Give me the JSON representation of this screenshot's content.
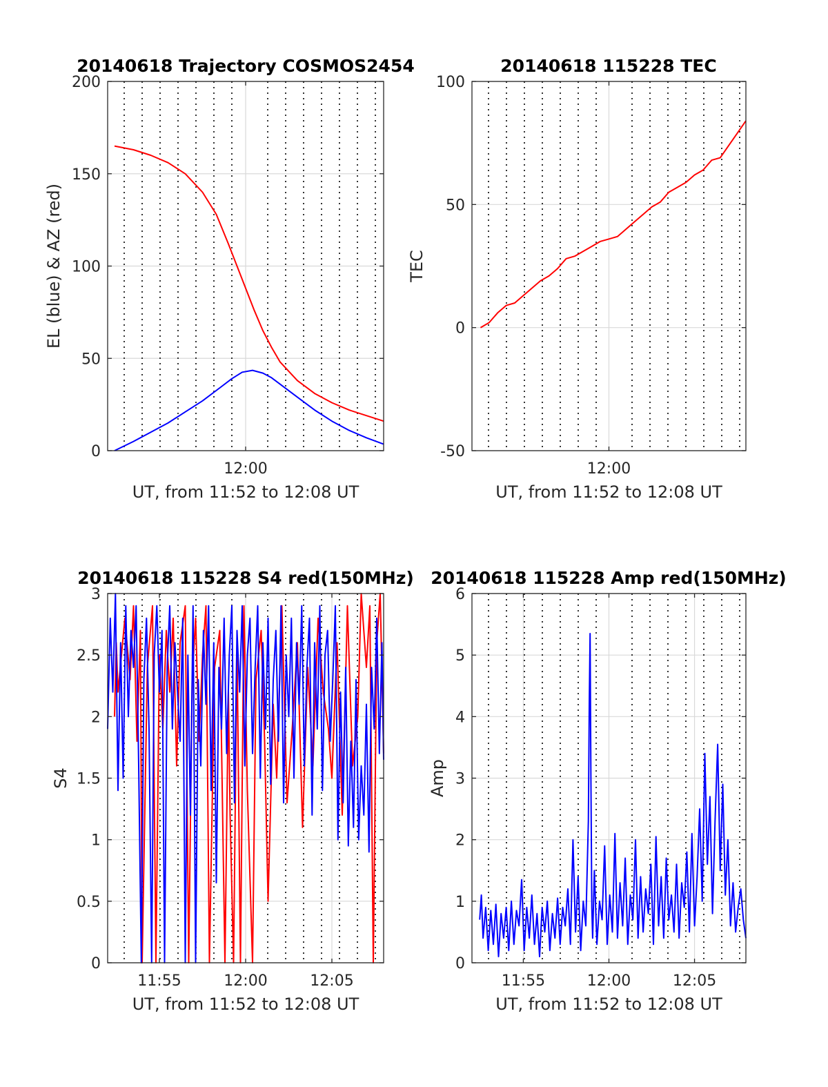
{
  "colors": {
    "el": "#0000ff",
    "az": "#ff0000",
    "grid": "#d9d9d9",
    "axis": "#262626"
  },
  "chart_data": [
    {
      "type": "line",
      "title": "20140618 Trajectory COSMOS2454",
      "xlabel": "UT, from 11:52 to 12:08 UT",
      "ylabel": "EL (blue) & AZ (red)",
      "xlim": [
        0,
        16
      ],
      "ylim": [
        0,
        200
      ],
      "xtick_values": [
        8
      ],
      "xtick_labels": [
        "12:00"
      ],
      "ytick_values": [
        0,
        50,
        100,
        150,
        200
      ],
      "ytick_labels": [
        "0",
        "50",
        "100",
        "150",
        "200"
      ],
      "grid": "on",
      "x_unit": "minutes after 11:52 UT",
      "series": [
        {
          "name": "AZ",
          "color": "#ff0000",
          "x": [
            0.4,
            1.5,
            2.5,
            3.5,
            4.5,
            5.5,
            6.3,
            7,
            7.5,
            8,
            8.5,
            9,
            9.5,
            10,
            11,
            12,
            13,
            14,
            15,
            16
          ],
          "y": [
            165,
            163,
            160,
            156,
            150,
            140,
            128,
            112,
            100,
            88,
            76,
            65,
            56,
            48,
            38,
            31,
            26,
            22,
            19,
            16
          ]
        },
        {
          "name": "EL",
          "color": "#0000ff",
          "x": [
            0.4,
            1.5,
            2.5,
            3.5,
            4.5,
            5.5,
            6.5,
            7.2,
            7.8,
            8.4,
            9,
            9.5,
            10,
            11,
            12,
            13,
            14,
            15,
            16
          ],
          "y": [
            0,
            5,
            10,
            15,
            21,
            27,
            34,
            39,
            42.5,
            43.5,
            42,
            39.5,
            36,
            29,
            22,
            16,
            11,
            7,
            3.5
          ]
        }
      ]
    },
    {
      "type": "line",
      "title": "20140618 115228 TEC",
      "xlabel": "UT, from 11:52 to 12:08 UT",
      "ylabel": "TEC",
      "xlim": [
        0,
        16
      ],
      "ylim": [
        -50,
        100
      ],
      "xtick_values": [
        8
      ],
      "xtick_labels": [
        "12:00"
      ],
      "ytick_values": [
        -50,
        0,
        50,
        100
      ],
      "ytick_labels": [
        "-50",
        "0",
        "50",
        "100"
      ],
      "grid": "on",
      "x_unit": "minutes after 11:52 UT",
      "series": [
        {
          "name": "TEC",
          "color": "#ff0000",
          "x": [
            0.5,
            1,
            1.5,
            2,
            2.5,
            3,
            3.5,
            4,
            4.5,
            5,
            5.5,
            6,
            6.5,
            7,
            7.5,
            8,
            8.5,
            9,
            9.5,
            10,
            10.5,
            11,
            11.5,
            12,
            12.5,
            13,
            13.5,
            14,
            14.5,
            15,
            15.5,
            16
          ],
          "y": [
            0,
            2,
            6,
            9,
            10,
            13,
            16,
            19,
            21,
            24,
            28,
            29,
            31,
            33,
            35,
            36,
            37,
            40,
            43,
            46,
            49,
            51,
            55,
            57,
            59,
            62,
            64,
            68,
            69,
            74,
            79,
            84
          ]
        }
      ]
    },
    {
      "type": "line",
      "title": "20140618 115228 S4 red(150MHz)",
      "xlabel": "UT, from 11:52 to 12:08 UT",
      "ylabel": "S4",
      "xlim": [
        0,
        16
      ],
      "ylim": [
        0,
        3
      ],
      "xtick_values": [
        3,
        8,
        13
      ],
      "xtick_labels": [
        "11:55",
        "12:00",
        "12:05"
      ],
      "ytick_values": [
        0,
        0.5,
        1,
        1.5,
        2,
        2.5,
        3
      ],
      "ytick_labels": [
        "0",
        "0.5",
        "1",
        "1.5",
        "2",
        "2.5",
        "3"
      ],
      "grid": "on",
      "x_unit": "minutes after 11:52 UT",
      "series": [
        {
          "name": "S4 red",
          "color": "#ff0000",
          "x": [
            0.4,
            0.5,
            0.6,
            0.8,
            1.0,
            1.3,
            1.5,
            1.7,
            1.9,
            2.0,
            2.3,
            2.6,
            2.8,
            3.0,
            3.2,
            3.4,
            3.6,
            3.8,
            4.0,
            4.2,
            4.5,
            4.7,
            4.9,
            5.1,
            5.3,
            5.5,
            5.7,
            5.9,
            6.2,
            6.5,
            6.8,
            7.0,
            7.1,
            7.3,
            7.5,
            7.7,
            7.9,
            8.1,
            8.4,
            8.6,
            8.9,
            9.1,
            9.3,
            9.6,
            9.8,
            10.1,
            10.4,
            10.7,
            11.0,
            11.3,
            11.6,
            11.9,
            12.2,
            12.5,
            12.8,
            13.0,
            13.3,
            13.6,
            13.9,
            14.2,
            14.5,
            14.7,
            15.0,
            15.2,
            15.4,
            15.6,
            15.8,
            16.0
          ],
          "y": [
            2.0,
            2.6,
            2.2,
            2.5,
            2.8,
            2.3,
            2.9,
            1.8,
            2.7,
            0.0,
            2.4,
            2.9,
            0.0,
            2.5,
            1.9,
            2.7,
            2.2,
            2.8,
            1.6,
            2.6,
            2.9,
            0.0,
            2.3,
            2.8,
            1.8,
            2.5,
            2.9,
            0.0,
            2.4,
            2.7,
            0.0,
            2.2,
            1.2,
            0.0,
            2.6,
            0.0,
            2.9,
            1.4,
            0.0,
            2.3,
            2.7,
            1.8,
            0.5,
            2.1,
            1.5,
            2.9,
            1.3,
            1.9,
            2.6,
            1.1,
            2.4,
            1.6,
            2.8,
            2.2,
            1.9,
            1.5,
            2.6,
            1.2,
            2.9,
            1.6,
            2.0,
            3.0,
            2.4,
            2.9,
            0.0,
            2.6,
            3.0,
            1.7
          ]
        },
        {
          "name": "S4 blue",
          "color": "#0000ff",
          "x": [
            0.0,
            0.15,
            0.3,
            0.45,
            0.6,
            0.75,
            0.9,
            1.05,
            1.2,
            1.35,
            1.5,
            1.65,
            1.8,
            1.95,
            2.1,
            2.25,
            2.4,
            2.55,
            2.7,
            2.85,
            3.0,
            3.15,
            3.3,
            3.45,
            3.6,
            3.75,
            3.9,
            4.05,
            4.2,
            4.35,
            4.5,
            4.65,
            4.8,
            4.95,
            5.1,
            5.25,
            5.4,
            5.55,
            5.7,
            5.85,
            6.0,
            6.15,
            6.3,
            6.45,
            6.6,
            6.75,
            6.9,
            7.05,
            7.2,
            7.35,
            7.5,
            7.65,
            7.8,
            7.95,
            8.1,
            8.25,
            8.4,
            8.55,
            8.7,
            8.85,
            9.0,
            9.15,
            9.3,
            9.45,
            9.6,
            9.75,
            9.9,
            10.05,
            10.2,
            10.35,
            10.5,
            10.65,
            10.8,
            10.95,
            11.1,
            11.25,
            11.4,
            11.55,
            11.7,
            11.85,
            12.0,
            12.15,
            12.3,
            12.45,
            12.6,
            12.75,
            12.9,
            13.05,
            13.2,
            13.35,
            13.5,
            13.65,
            13.8,
            13.95,
            14.1,
            14.25,
            14.4,
            14.55,
            14.7,
            14.85,
            15.0,
            15.15,
            15.3,
            15.45,
            15.6,
            15.75,
            15.9,
            16.0
          ],
          "y": [
            1.9,
            2.8,
            2.2,
            3.0,
            1.4,
            2.6,
            1.5,
            2.9,
            2.0,
            2.7,
            2.4,
            2.9,
            1.6,
            0.0,
            2.3,
            2.8,
            1.9,
            0.0,
            2.5,
            2.9,
            2.2,
            2.7,
            0.0,
            2.4,
            2.9,
            1.9,
            2.6,
            2.2,
            1.8,
            2.8,
            0.0,
            2.5,
            1.2,
            2.9,
            0.0,
            2.3,
            1.6,
            2.7,
            2.1,
            2.9,
            1.4,
            2.6,
            0.65,
            2.4,
            1.9,
            2.8,
            1.7,
            2.5,
            2.9,
            1.3,
            2.7,
            2.2,
            2.9,
            1.6,
            2.5,
            2.8,
            1.7,
            2.4,
            2.9,
            1.5,
            2.6,
            1.9,
            2.8,
            1.45,
            2.3,
            2.7,
            1.8,
            2.9,
            1.3,
            2.5,
            2.0,
            2.8,
            1.5,
            2.6,
            2.1,
            2.9,
            1.6,
            2.4,
            2.8,
            1.2,
            2.6,
            1.9,
            2.9,
            1.4,
            2.5,
            2.7,
            1.8,
            2.3,
            2.9,
            1.0,
            2.2,
            1.3,
            2.4,
            0.95,
            1.8,
            1.1,
            2.3,
            1.0,
            1.6,
            1.2,
            2.1,
            0.9,
            2.4,
            1.9,
            2.8,
            1.7,
            2.6,
            1.65
          ]
        }
      ]
    },
    {
      "type": "line",
      "title": "20140618 115228 Amp red(150MHz)",
      "xlabel": "UT, from 11:52 to 12:08 UT",
      "ylabel": "Amp",
      "xlim": [
        0,
        16
      ],
      "ylim": [
        0,
        6
      ],
      "xtick_values": [
        3,
        8,
        13
      ],
      "xtick_labels": [
        "11:55",
        "12:00",
        "12:05"
      ],
      "ytick_values": [
        0,
        1,
        2,
        3,
        4,
        5,
        6
      ],
      "ytick_labels": [
        "0",
        "1",
        "2",
        "3",
        "4",
        "5",
        "6"
      ],
      "grid": "on",
      "x_unit": "minutes after 11:52 UT",
      "series": [
        {
          "name": "Amp blue",
          "color": "#0000ff",
          "x": [
            0.45,
            0.55,
            0.65,
            0.8,
            0.95,
            1.1,
            1.25,
            1.4,
            1.55,
            1.7,
            1.85,
            2.0,
            2.15,
            2.3,
            2.45,
            2.6,
            2.75,
            2.9,
            3.05,
            3.2,
            3.35,
            3.5,
            3.65,
            3.8,
            3.95,
            4.1,
            4.25,
            4.4,
            4.55,
            4.7,
            4.85,
            5.0,
            5.15,
            5.3,
            5.45,
            5.6,
            5.75,
            5.9,
            6.05,
            6.2,
            6.35,
            6.5,
            6.65,
            6.8,
            6.85,
            6.9,
            6.95,
            7.0,
            7.05,
            7.15,
            7.3,
            7.45,
            7.6,
            7.75,
            7.9,
            8.05,
            8.2,
            8.35,
            8.5,
            8.65,
            8.8,
            8.95,
            9.1,
            9.25,
            9.4,
            9.55,
            9.7,
            9.85,
            10.0,
            10.15,
            10.3,
            10.45,
            10.6,
            10.75,
            10.9,
            11.05,
            11.2,
            11.35,
            11.5,
            11.65,
            11.8,
            11.95,
            12.1,
            12.25,
            12.4,
            12.55,
            12.7,
            12.85,
            13.0,
            13.15,
            13.3,
            13.45,
            13.6,
            13.75,
            13.9,
            14.05,
            14.2,
            14.35,
            14.5,
            14.65,
            14.8,
            14.95,
            15.1,
            15.25,
            15.4,
            15.55,
            15.7,
            15.85,
            16.0
          ],
          "y": [
            0.7,
            1.1,
            0.4,
            0.9,
            0.2,
            0.85,
            0.3,
            0.95,
            0.1,
            0.8,
            0.4,
            0.9,
            0.2,
            1.0,
            0.3,
            0.85,
            0.6,
            1.35,
            0.2,
            0.9,
            0.4,
            1.1,
            0.3,
            0.8,
            0.1,
            0.9,
            0.5,
            1.0,
            0.2,
            0.8,
            0.4,
            1.05,
            0.3,
            0.9,
            0.6,
            1.2,
            0.3,
            2.0,
            0.5,
            1.4,
            0.2,
            1.0,
            0.6,
            2.3,
            4.2,
            5.35,
            3.0,
            0.9,
            0.4,
            1.5,
            0.3,
            1.0,
            0.7,
            1.9,
            0.3,
            1.1,
            0.5,
            2.1,
            0.4,
            1.3,
            0.6,
            1.7,
            0.3,
            1.1,
            0.7,
            2.0,
            0.4,
            1.4,
            0.5,
            1.2,
            0.8,
            1.6,
            0.3,
            2.05,
            0.6,
            1.4,
            0.4,
            1.7,
            0.7,
            1.1,
            0.5,
            1.6,
            0.4,
            1.3,
            0.9,
            1.8,
            0.5,
            2.1,
            0.6,
            1.4,
            2.5,
            1.0,
            3.4,
            1.6,
            2.7,
            0.8,
            2.3,
            3.55,
            1.5,
            2.9,
            1.1,
            2.0,
            0.6,
            1.3,
            0.5,
            0.9,
            1.2,
            0.7,
            0.4
          ]
        }
      ]
    }
  ]
}
